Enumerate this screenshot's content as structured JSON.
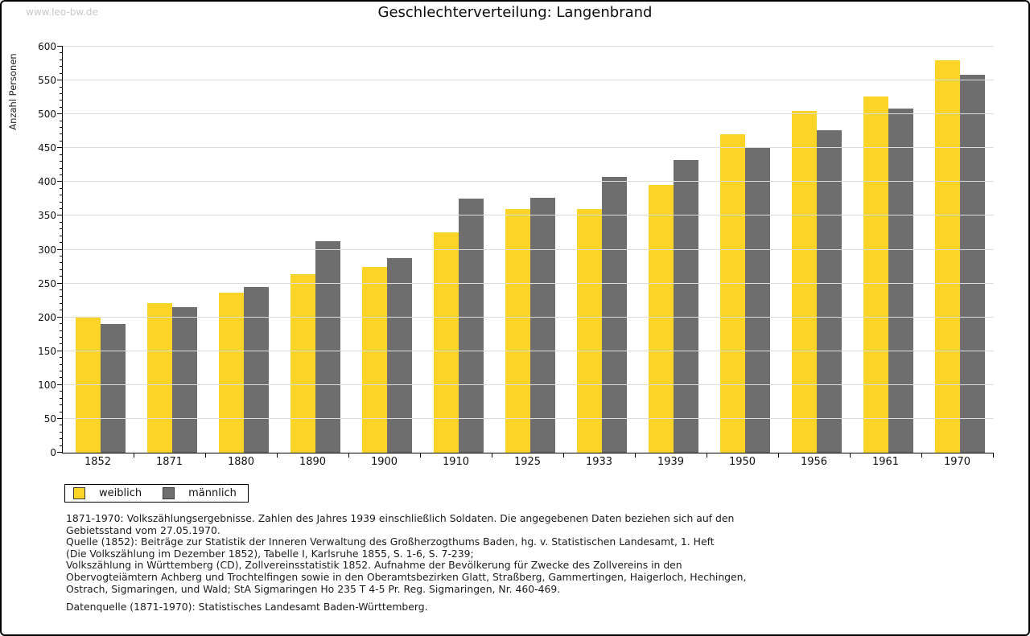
{
  "watermark": "www.leo-bw.de",
  "title": "Geschlechterverteilung: Langenbrand",
  "chart_data": {
    "type": "bar",
    "title": "Geschlechterverteilung: Langenbrand",
    "xlabel": "",
    "ylabel": "Anzahl Personen",
    "ylim": [
      0,
      600
    ],
    "ytick_step": 50,
    "yminor_step": 10,
    "grid": true,
    "legend_position": "bottom-left",
    "categories": [
      "1852",
      "1871",
      "1880",
      "1890",
      "1900",
      "1910",
      "1925",
      "1933",
      "1939",
      "1950",
      "1956",
      "1961",
      "1970"
    ],
    "series": [
      {
        "name": "weiblich",
        "color": "#FCD327",
        "values": [
          201,
          221,
          236,
          264,
          275,
          325,
          360,
          360,
          396,
          470,
          505,
          526,
          580
        ]
      },
      {
        "name": "männlich",
        "color": "#6E6E6E",
        "values": [
          190,
          215,
          245,
          313,
          287,
          376,
          377,
          407,
          432,
          450,
          477,
          509,
          558
        ]
      }
    ]
  },
  "colors": {
    "grid": "#DCDCDC",
    "axis": "#000000",
    "watermark": "#C9C9C9"
  },
  "footnotes": [
    "1871-1970: Volkszählungsergebnisse. Zahlen des Jahres 1939 einschließlich Soldaten. Die angegebenen Daten beziehen sich auf den",
    "Gebietsstand vom 27.05.1970.",
    "Quelle (1852): Beiträge zur Statistik der Inneren Verwaltung des Großherzogthums Baden, hg. v. Statistischen Landesamt, 1. Heft",
    "(Die Volkszählung im Dezember 1852), Tabelle I, Karlsruhe 1855, S. 1-6, S. 7-239;",
    "Volkszählung in Württemberg (CD), Zollvereinsstatistik 1852. Aufnahme der Bevölkerung für Zwecke des Zollvereins in den",
    "Obervogteiämtern Achberg und Trochtelfingen sowie in den Oberamtsbezirken Glatt, Straßberg, Gammertingen, Haigerloch, Hechingen,",
    "Ostrach, Sigmaringen, und Wald; StA Sigmaringen Ho 235 T 4-5 Pr. Reg. Sigmaringen, Nr. 460-469."
  ],
  "datasource": "Datenquelle (1871-1970): Statistisches Landesamt Baden-Württemberg."
}
